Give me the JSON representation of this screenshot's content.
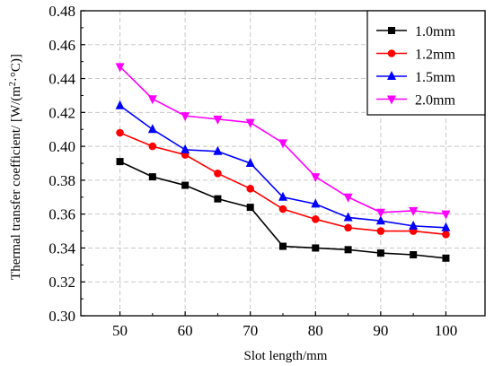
{
  "chart_data": {
    "type": "line",
    "xlabel": "Slot length/mm",
    "ylabel_parts": {
      "prefix": "Thermal transfer coefficient/ [W/(m",
      "sup": "2",
      "suffix": "·°C)]"
    },
    "xlim": [
      44,
      106
    ],
    "ylim": [
      0.3,
      0.48
    ],
    "xticks": [
      50,
      60,
      70,
      80,
      90,
      100
    ],
    "yticks": [
      "0.30",
      "0.32",
      "0.34",
      "0.36",
      "0.38",
      "0.40",
      "0.42",
      "0.44",
      "0.46",
      "0.48"
    ],
    "grid": true,
    "legend_position": "top-right",
    "x": [
      50,
      55,
      60,
      65,
      70,
      75,
      80,
      85,
      90,
      95,
      100
    ],
    "series": [
      {
        "name": "1.0mm",
        "color": "#000000",
        "marker": "square",
        "values": [
          0.391,
          0.382,
          0.377,
          0.369,
          0.364,
          0.341,
          0.34,
          0.339,
          0.337,
          0.336,
          0.334
        ]
      },
      {
        "name": "1.2mm",
        "color": "#ff0000",
        "marker": "circle",
        "values": [
          0.408,
          0.4,
          0.395,
          0.384,
          0.375,
          0.363,
          0.357,
          0.352,
          0.35,
          0.35,
          0.348
        ]
      },
      {
        "name": "1.5mm",
        "color": "#0000ff",
        "marker": "triangle-up",
        "values": [
          0.424,
          0.41,
          0.398,
          0.397,
          0.39,
          0.37,
          0.366,
          0.358,
          0.356,
          0.353,
          0.352
        ]
      },
      {
        "name": "2.0mm",
        "color": "#ff00ff",
        "marker": "triangle-down",
        "values": [
          0.447,
          0.428,
          0.418,
          0.416,
          0.414,
          0.402,
          0.382,
          0.37,
          0.361,
          0.362,
          0.36
        ]
      }
    ]
  }
}
